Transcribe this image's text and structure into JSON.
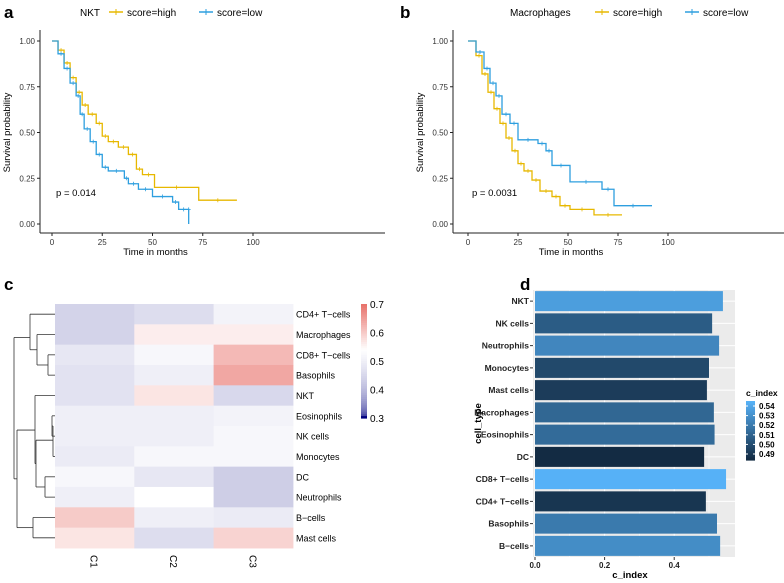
{
  "panels": [
    "a",
    "b",
    "c",
    "d"
  ],
  "chart_data": [
    {
      "type": "line",
      "panel": "a",
      "legend_title": "NKT",
      "legend_position": "top",
      "xlabel": "Time in months",
      "ylabel": "Survival probability",
      "xlim": [
        0,
        100
      ],
      "ylim": [
        0,
        1
      ],
      "xticks": [
        "0",
        "25",
        "50",
        "75",
        "100"
      ],
      "yticks": [
        "0.00",
        "0.25",
        "0.50",
        "0.75",
        "1.00"
      ],
      "annotation": "p = 0.014",
      "series": [
        {
          "name": "score=high",
          "color": "#E7B800",
          "x": [
            0,
            3,
            6,
            9,
            12,
            15,
            18,
            22,
            25,
            28,
            33,
            38,
            42,
            45,
            51,
            73,
            92
          ],
          "y": [
            1,
            0.95,
            0.88,
            0.8,
            0.72,
            0.65,
            0.6,
            0.55,
            0.48,
            0.45,
            0.42,
            0.38,
            0.3,
            0.27,
            0.2,
            0.13,
            0.13
          ]
        },
        {
          "name": "score=low",
          "color": "#2E9FDF",
          "x": [
            0,
            3,
            6,
            9,
            12,
            14,
            16,
            19,
            22,
            25,
            28,
            36,
            38,
            43,
            50,
            60,
            63,
            68,
            68
          ],
          "y": [
            1,
            0.93,
            0.85,
            0.77,
            0.7,
            0.6,
            0.52,
            0.45,
            0.38,
            0.31,
            0.29,
            0.25,
            0.22,
            0.19,
            0.15,
            0.12,
            0.08,
            0.08,
            0
          ]
        }
      ]
    },
    {
      "type": "line",
      "panel": "b",
      "legend_title": "Macrophages",
      "legend_position": "top",
      "xlabel": "Time in months",
      "ylabel": "Survival probability",
      "xlim": [
        0,
        100
      ],
      "ylim": [
        0,
        1
      ],
      "xticks": [
        "0",
        "25",
        "50",
        "75",
        "100"
      ],
      "yticks": [
        "0.00",
        "0.25",
        "0.50",
        "0.75",
        "1.00"
      ],
      "annotation": "p = 0.0031",
      "series": [
        {
          "name": "score=high",
          "color": "#E7B800",
          "x": [
            0,
            4,
            7,
            10,
            13,
            16,
            19,
            22,
            25,
            28,
            32,
            36,
            42,
            46,
            51,
            63,
            77
          ],
          "y": [
            1,
            0.92,
            0.82,
            0.72,
            0.63,
            0.55,
            0.47,
            0.4,
            0.33,
            0.29,
            0.24,
            0.18,
            0.15,
            0.1,
            0.08,
            0.05,
            0.05
          ]
        },
        {
          "name": "score=low",
          "color": "#2E9FDF",
          "x": [
            0,
            4,
            8,
            11,
            14,
            17,
            21,
            25,
            35,
            39,
            42,
            51,
            67,
            73,
            92
          ],
          "y": [
            1,
            0.94,
            0.85,
            0.77,
            0.7,
            0.6,
            0.55,
            0.46,
            0.44,
            0.4,
            0.32,
            0.23,
            0.19,
            0.1,
            0.1
          ]
        }
      ]
    },
    {
      "type": "heatmap",
      "panel": "c",
      "columns": [
        "C1",
        "C2",
        "C3"
      ],
      "rows": [
        "CD4+ T−cells",
        "Macrophages",
        "CD8+ T−cells",
        "Basophils",
        "NKT",
        "Eosinophils",
        "NK cells",
        "Monocytes",
        "DC",
        "Neutrophils",
        "B−cells",
        "Mast cells"
      ],
      "values": [
        [
          0.44,
          0.46,
          0.51
        ],
        [
          0.44,
          0.56,
          0.56
        ],
        [
          0.48,
          0.52,
          0.62
        ],
        [
          0.47,
          0.5,
          0.64
        ],
        [
          0.47,
          0.57,
          0.45
        ],
        [
          0.5,
          0.5,
          0.51
        ],
        [
          0.5,
          0.5,
          0.52
        ],
        [
          0.49,
          0.52,
          0.52
        ],
        [
          0.52,
          0.48,
          0.43
        ],
        [
          0.5,
          0.54,
          0.43
        ],
        [
          0.6,
          0.5,
          0.49
        ],
        [
          0.57,
          0.46,
          0.59
        ]
      ],
      "colorbar": {
        "ticks": [
          "0.7",
          "0.6",
          "0.5",
          "0.4",
          "0.3"
        ],
        "range": [
          0.3,
          0.7
        ],
        "low": "#000080",
        "mid": "#FFFFFF",
        "high": "#E8736C",
        "midpoint": 0.54
      },
      "dendrogram": "rows"
    },
    {
      "type": "bar",
      "orientation": "horizontal",
      "panel": "d",
      "xlabel": "c_index",
      "ylabel": "cell_type",
      "xlim": [
        0,
        0.56
      ],
      "xticks": [
        "0.0",
        "0.2",
        "0.4"
      ],
      "grid": true,
      "categories": [
        "NKT",
        "NK cells",
        "Neutrophils",
        "Monocytes",
        "Mast cells",
        "Macrophages",
        "Eosinophils",
        "DC",
        "CD8+ T−cells",
        "CD4+ T−cells",
        "Basophils",
        "B−cells"
      ],
      "values": [
        0.54,
        0.509,
        0.529,
        0.5,
        0.494,
        0.514,
        0.516,
        0.486,
        0.549,
        0.491,
        0.523,
        0.532
      ],
      "legend": {
        "title": "c_index",
        "ticks": [
          "0.54",
          "0.53",
          "0.52",
          "0.51",
          "0.50",
          "0.49"
        ],
        "low": "#132B43",
        "high": "#56B1F7",
        "range": [
          0.486,
          0.549
        ]
      }
    }
  ]
}
